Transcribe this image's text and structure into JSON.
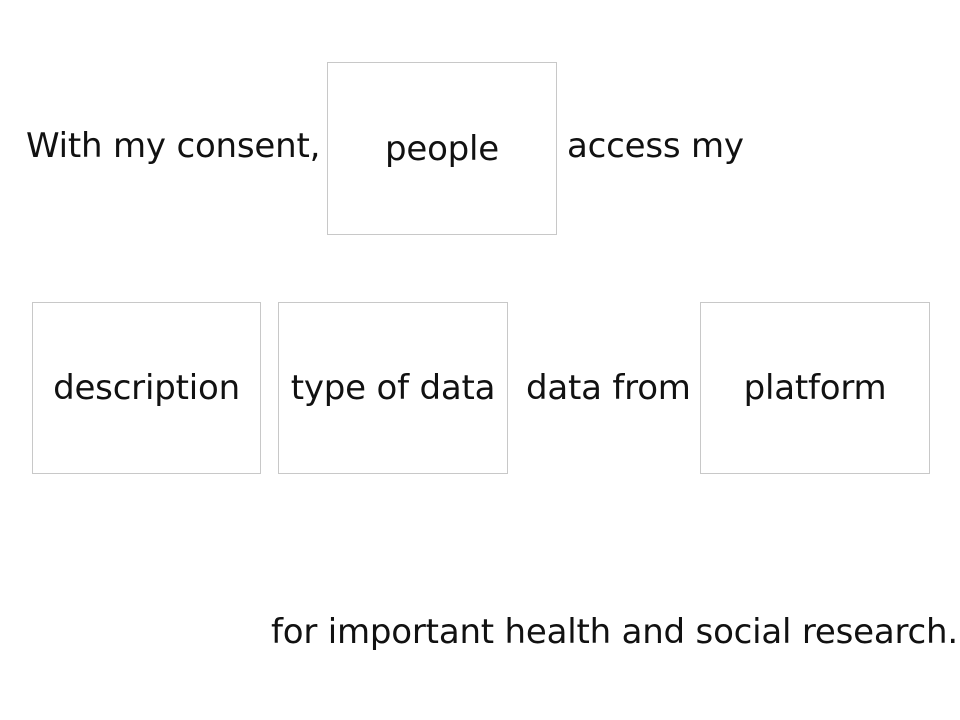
{
  "sentence": {
    "intro_text": "With my consent,",
    "after_people_text": "access my",
    "connector_text": "data from",
    "purpose_text": "for important health and social research."
  },
  "slots": {
    "people": {
      "label": "people"
    },
    "description": {
      "label": "description"
    },
    "type_of_data": {
      "label": "type of data"
    },
    "platform": {
      "label": "platform"
    }
  },
  "colors": {
    "text": "#111111",
    "slot_border": "#c8c8c8",
    "background": "#ffffff"
  }
}
